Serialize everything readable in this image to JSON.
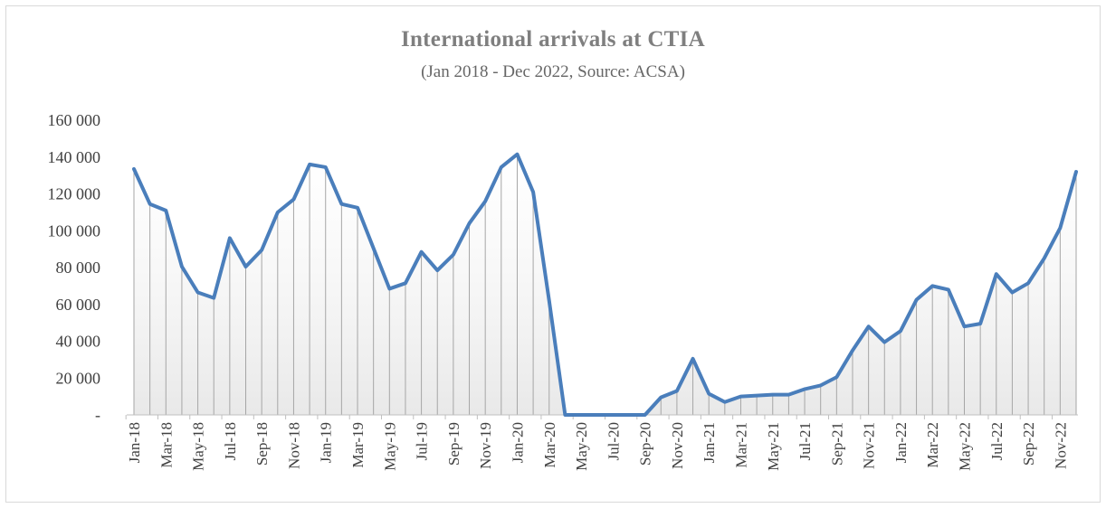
{
  "chart_data": {
    "type": "area",
    "title": "International arrivals at CTIA",
    "subtitle": "(Jan 2018 - Dec 2022, Source: ACSA)",
    "xlabel": "",
    "ylabel": "",
    "ylim": [
      0,
      160000
    ],
    "y_ticks": [
      {
        "value": 0,
        "label": "-"
      },
      {
        "value": 20000,
        "label": "20 000"
      },
      {
        "value": 40000,
        "label": "40 000"
      },
      {
        "value": 60000,
        "label": "60 000"
      },
      {
        "value": 80000,
        "label": "80 000"
      },
      {
        "value": 100000,
        "label": "100 000"
      },
      {
        "value": 120000,
        "label": "120 000"
      },
      {
        "value": 140000,
        "label": "140 000"
      },
      {
        "value": 160000,
        "label": "160 000"
      }
    ],
    "x_tick_labels": [
      {
        "index": 0,
        "label": "Jan-18"
      },
      {
        "index": 2,
        "label": "Mar-18"
      },
      {
        "index": 4,
        "label": "May-18"
      },
      {
        "index": 6,
        "label": "Jul-18"
      },
      {
        "index": 8,
        "label": "Sep-18"
      },
      {
        "index": 10,
        "label": "Nov-18"
      },
      {
        "index": 12,
        "label": "Jan-19"
      },
      {
        "index": 14,
        "label": "Mar-19"
      },
      {
        "index": 16,
        "label": "May-19"
      },
      {
        "index": 18,
        "label": "Jul-19"
      },
      {
        "index": 20,
        "label": "Sep-19"
      },
      {
        "index": 22,
        "label": "Nov-19"
      },
      {
        "index": 24,
        "label": "Jan-20"
      },
      {
        "index": 26,
        "label": "Mar-20"
      },
      {
        "index": 28,
        "label": "May-20"
      },
      {
        "index": 30,
        "label": "Jul-20"
      },
      {
        "index": 32,
        "label": "Sep-20"
      },
      {
        "index": 34,
        "label": "Nov-20"
      },
      {
        "index": 36,
        "label": "Jan-21"
      },
      {
        "index": 38,
        "label": "Mar-21"
      },
      {
        "index": 40,
        "label": "May-21"
      },
      {
        "index": 42,
        "label": "Jul-21"
      },
      {
        "index": 44,
        "label": "Sep-21"
      },
      {
        "index": 46,
        "label": "Nov-21"
      },
      {
        "index": 48,
        "label": "Jan-22"
      },
      {
        "index": 50,
        "label": "Mar-22"
      },
      {
        "index": 52,
        "label": "May-22"
      },
      {
        "index": 54,
        "label": "Jul-22"
      },
      {
        "index": 56,
        "label": "Sep-22"
      },
      {
        "index": 58,
        "label": "Nov-22"
      }
    ],
    "categories": [
      "Jan-18",
      "Feb-18",
      "Mar-18",
      "Apr-18",
      "May-18",
      "Jun-18",
      "Jul-18",
      "Aug-18",
      "Sep-18",
      "Oct-18",
      "Nov-18",
      "Dec-18",
      "Jan-19",
      "Feb-19",
      "Mar-19",
      "Apr-19",
      "May-19",
      "Jun-19",
      "Jul-19",
      "Aug-19",
      "Sep-19",
      "Oct-19",
      "Nov-19",
      "Dec-19",
      "Jan-20",
      "Feb-20",
      "Mar-20",
      "Apr-20",
      "May-20",
      "Jun-20",
      "Jul-20",
      "Aug-20",
      "Sep-20",
      "Oct-20",
      "Nov-20",
      "Dec-20",
      "Jan-21",
      "Feb-21",
      "Mar-21",
      "Apr-21",
      "May-21",
      "Jun-21",
      "Jul-21",
      "Aug-21",
      "Sep-21",
      "Oct-21",
      "Nov-21",
      "Dec-21",
      "Jan-22",
      "Feb-22",
      "Mar-22",
      "Apr-22",
      "May-22",
      "Jun-22",
      "Jul-22",
      "Aug-22",
      "Sep-22",
      "Oct-22",
      "Nov-22",
      "Dec-22"
    ],
    "series": [
      {
        "values": [
          133500,
          114500,
          111000,
          80500,
          66500,
          63500,
          96000,
          80500,
          89500,
          110000,
          117000,
          136000,
          134500,
          114500,
          112500,
          90500,
          68500,
          71500,
          88500,
          78500,
          87000,
          104000,
          116000,
          134500,
          141500,
          121000,
          62000,
          0,
          0,
          0,
          0,
          0,
          0,
          9500,
          13000,
          30500,
          11500,
          7000,
          10000,
          10500,
          11000,
          11000,
          14000,
          16000,
          20500,
          35000,
          48000,
          39500,
          45500,
          62500,
          70000,
          68000,
          48000,
          49500,
          76500,
          66500,
          71500,
          85000,
          101500,
          132000
        ]
      }
    ],
    "colors": {
      "line": "#4a7ebb",
      "drop_lines": "#a6a6a6",
      "fill_top": "#f2f2f2",
      "axis": "#bfbfbf"
    },
    "grid": false,
    "legend": "none"
  }
}
